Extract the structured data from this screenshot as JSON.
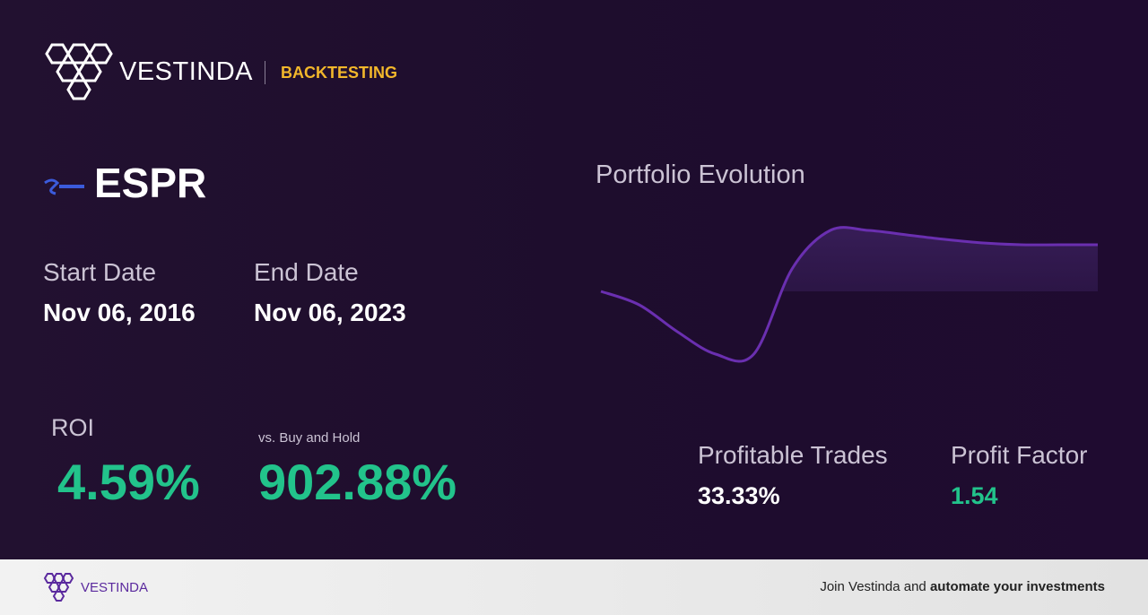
{
  "header": {
    "brand": "VESTINDA",
    "section": "BACKTESTING"
  },
  "ticker": "ESPR",
  "start_date": {
    "label": "Start Date",
    "value": "Nov 06, 2016"
  },
  "end_date": {
    "label": "End Date",
    "value": "Nov 06, 2023"
  },
  "roi": {
    "label": "ROI",
    "value": "4.59%"
  },
  "buy_and_hold": {
    "label": "vs. Buy and Hold",
    "value": "902.88%"
  },
  "chart_data": {
    "type": "line",
    "title": "Portfolio Evolution",
    "values": [
      0,
      -15,
      -45,
      -70,
      -70,
      25,
      68,
      68,
      63,
      58,
      54,
      52,
      52,
      52
    ],
    "ylim": [
      -80,
      75
    ],
    "color": "#6a2fb0"
  },
  "profitable_trades": {
    "label": "Profitable Trades",
    "value": "33.33%"
  },
  "profit_factor": {
    "label": "Profit Factor",
    "value": "1.54"
  },
  "footer": {
    "brand": "VESTINDA",
    "text": "Join Vestinda and",
    "text_bold": "automate your investments"
  }
}
